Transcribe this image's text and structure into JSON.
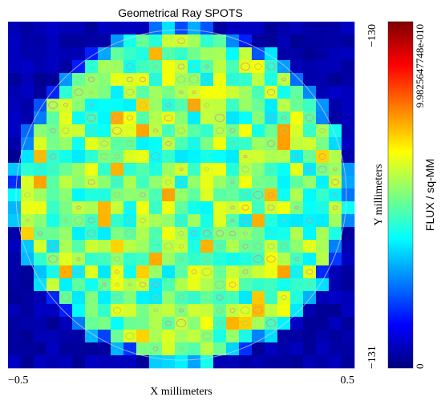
{
  "chart_data": {
    "type": "heatmap",
    "title": "Geometrical Ray SPOTS",
    "xlabel": "X millimeters",
    "ylabel": "Y millimeters",
    "x_ticks": [
      "−0.5",
      "0.5"
    ],
    "y_ticks": [
      "−130",
      "−131"
    ],
    "xlim": [
      -0.5,
      0.5
    ],
    "ylim": [
      -131,
      -130
    ],
    "grid": {
      "cols": 27,
      "rows": 27
    },
    "spot_shape": "circular aperture, flux inside, near-zero outside",
    "colorbar": {
      "label": "FLUX / sq-MM",
      "max_label": "9.9825647748e-010",
      "min_label": "0",
      "min": 0,
      "max": 9.9825647748e-10,
      "colormap": [
        "#00007f",
        "#0000ff",
        "#007fff",
        "#00ffff",
        "#7fff7f",
        "#ffff00",
        "#ff7f00",
        "#ff0000",
        "#7f0000"
      ]
    },
    "typical_flux_fraction": [
      0.35,
      0.62
    ]
  }
}
